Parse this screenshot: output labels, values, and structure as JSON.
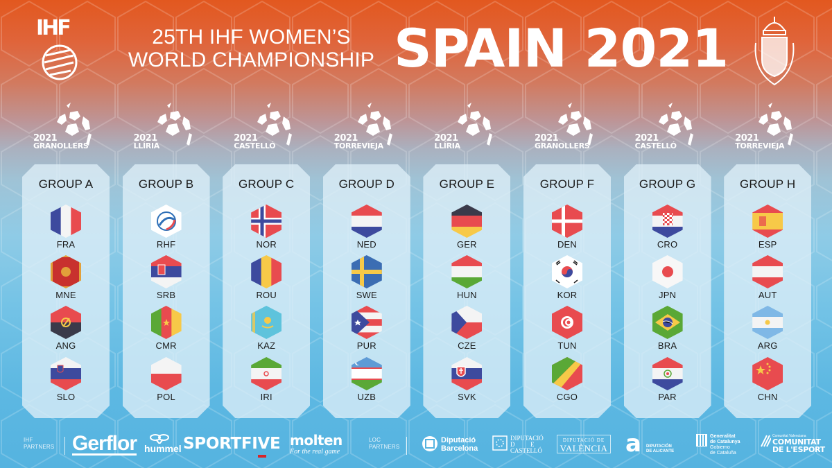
{
  "header": {
    "title_line1": "25TH IHF WOMEN’S",
    "title_line2": "WORLD CHAMPIONSHIP",
    "title_main": "SPAIN 2021",
    "left_logo": "IHF",
    "right_logo": "crest"
  },
  "venues": [
    {
      "year": "2021",
      "city": "GRANOLLERS"
    },
    {
      "year": "2021",
      "city": "LLÍRIA"
    },
    {
      "year": "2021",
      "city": "CASTELLÓ"
    },
    {
      "year": "2021",
      "city": "TORREVIEJA"
    },
    {
      "year": "2021",
      "city": "LLÍRIA"
    },
    {
      "year": "2021",
      "city": "GRANOLLERS"
    },
    {
      "year": "2021",
      "city": "CASTELLÓ"
    },
    {
      "year": "2021",
      "city": "TORREVIEJA"
    }
  ],
  "groups": [
    {
      "name": "GROUP A",
      "teams": [
        "FRA",
        "MNE",
        "ANG",
        "SLO"
      ]
    },
    {
      "name": "GROUP B",
      "teams": [
        "RHF",
        "SRB",
        "CMR",
        "POL"
      ]
    },
    {
      "name": "GROUP C",
      "teams": [
        "NOR",
        "ROU",
        "KAZ",
        "IRI"
      ]
    },
    {
      "name": "GROUP D",
      "teams": [
        "NED",
        "SWE",
        "PUR",
        "UZB"
      ]
    },
    {
      "name": "GROUP E",
      "teams": [
        "GER",
        "HUN",
        "CZE",
        "SVK"
      ]
    },
    {
      "name": "GROUP F",
      "teams": [
        "DEN",
        "KOR",
        "TUN",
        "CGO"
      ]
    },
    {
      "name": "GROUP G",
      "teams": [
        "CRO",
        "JPN",
        "BRA",
        "PAR"
      ]
    },
    {
      "name": "GROUP H",
      "teams": [
        "ESP",
        "AUT",
        "ARG",
        "CHN"
      ]
    }
  ],
  "footer": {
    "ihf_partners_label_1": "IHF",
    "ihf_partners_label_2": "PARTNERS",
    "loc_partners_label_1": "LOC",
    "loc_partners_label_2": "PARTNERS",
    "ihf_partners": {
      "gerflor": "Gerflor",
      "hummel": "hummel",
      "sportfive": "SPORTFIVE",
      "molten": "molten",
      "molten_tagline": "For the real game"
    },
    "loc_partners": {
      "dip_barcelona_1": "Diputació",
      "dip_barcelona_2": "Barcelona",
      "dip_castello_1": "DIPUTACIÓ",
      "dip_castello_2": "D          E",
      "dip_castello_3": "CASTELLÓ",
      "dip_valencia_1": "DIPUTACIÓ DE",
      "dip_valencia_2": "VALÈNCIA",
      "dip_alicante_mark": "a",
      "dip_alicante_1": "DIPUTACIÓN",
      "dip_alicante_2": "DE ALICANTE",
      "gencat_1": "Generalitat",
      "gencat_2": "de Catalunya",
      "gencat_3": "Gobierno",
      "gencat_4": "de Cataluña",
      "comunitat_1": "Comunitat Valenciana",
      "comunitat_2": "COMUNITAT",
      "comunitat_3": "DE L'ESPORT"
    }
  },
  "colors": {
    "top_orange": "#e2581f",
    "bottom_blue": "#55b3e0",
    "card_bg": "#deeef7",
    "text_dark": "#1a1a1a",
    "sportfive_red": "#d7252a"
  }
}
